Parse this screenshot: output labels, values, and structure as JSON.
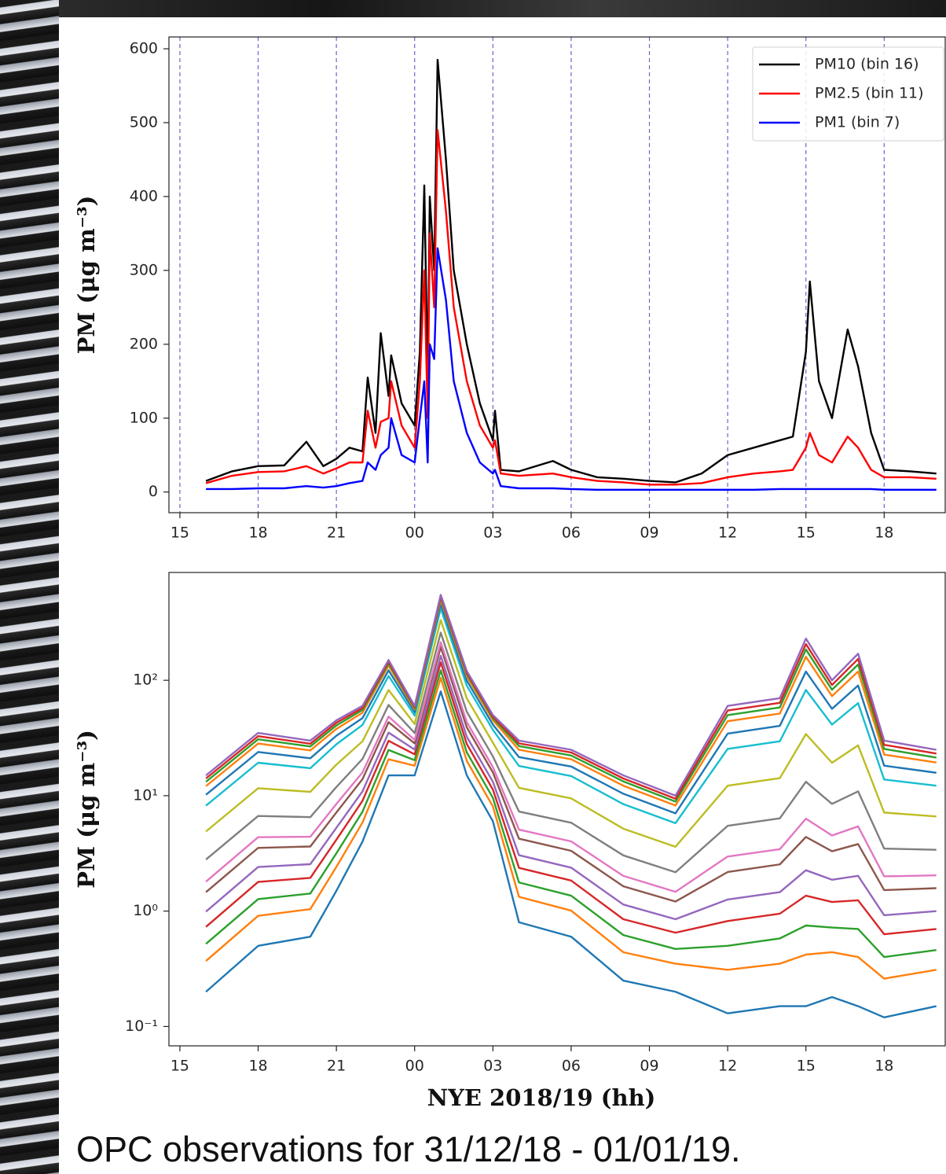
{
  "caption": "OPC observations for 31/12/18 - 01/01/19.",
  "chart_data": [
    {
      "type": "line",
      "ylabel": "PM (μg m⁻³)",
      "x": [
        16,
        17,
        18,
        19,
        19.85,
        20.5,
        21,
        21.5,
        22,
        22.2,
        22.5,
        22.7,
        23,
        23.1,
        23.5,
        24,
        24.2,
        24.37,
        24.5,
        24.58,
        24.75,
        24.88,
        25.2,
        25.5,
        26,
        26.5,
        27,
        27.08,
        27.3,
        28,
        29.3,
        30,
        31,
        32,
        33,
        34,
        35,
        36,
        37,
        38,
        38.5,
        39,
        39.15,
        39.5,
        40,
        40.6,
        41,
        41.5,
        42,
        43,
        44
      ],
      "series": [
        {
          "name": "PM10 (bin 16)",
          "color": "#000000",
          "values": [
            15,
            28,
            35,
            36,
            68,
            35,
            45,
            60,
            55,
            155,
            80,
            215,
            130,
            185,
            120,
            90,
            190,
            415,
            150,
            400,
            300,
            585,
            450,
            300,
            200,
            120,
            70,
            110,
            30,
            28,
            42,
            30,
            20,
            18,
            15,
            13,
            25,
            50,
            60,
            70,
            75,
            190,
            285,
            150,
            100,
            220,
            170,
            80,
            30,
            28,
            25
          ]
        },
        {
          "name": "PM2.5 (bin 11)",
          "color": "#ff0000",
          "values": [
            12,
            22,
            27,
            28,
            35,
            25,
            32,
            40,
            40,
            110,
            60,
            95,
            100,
            150,
            90,
            60,
            150,
            300,
            100,
            350,
            250,
            490,
            380,
            250,
            150,
            90,
            60,
            70,
            25,
            22,
            25,
            20,
            15,
            13,
            10,
            10,
            12,
            20,
            25,
            28,
            30,
            60,
            80,
            50,
            40,
            75,
            60,
            30,
            20,
            20,
            18
          ]
        },
        {
          "name": "PM1 (bin 7)",
          "color": "#0000ff",
          "values": [
            4,
            4,
            5,
            5,
            8,
            6,
            8,
            12,
            15,
            40,
            30,
            50,
            60,
            100,
            50,
            40,
            100,
            150,
            40,
            200,
            180,
            330,
            260,
            150,
            80,
            40,
            25,
            30,
            8,
            5,
            5,
            4,
            3,
            3,
            3,
            3,
            3,
            3,
            3,
            4,
            4,
            4,
            4,
            4,
            4,
            4,
            4,
            4,
            3,
            3,
            3
          ]
        }
      ],
      "xlim": [
        14.58,
        44.34
      ],
      "xticks": [
        15,
        18,
        21,
        {
          "value": 24,
          "label": "00"
        },
        {
          "value": 27,
          "label": "03"
        },
        {
          "value": 30,
          "label": "06"
        },
        {
          "value": 33,
          "label": "09"
        },
        {
          "value": 36,
          "label": "12"
        },
        {
          "value": 39,
          "label": "15"
        },
        {
          "value": 42,
          "label": "18"
        }
      ],
      "ylim": [
        -28,
        616
      ],
      "yticks": [
        0,
        100,
        200,
        300,
        400,
        500,
        600
      ],
      "yscale": "linear",
      "grid": "x",
      "grid_color": "#6f63c9",
      "legend": "upper right"
    },
    {
      "type": "line",
      "xlabel": "NYE 2018/19 (hh)",
      "ylabel": "PM (μg m⁻³)",
      "x": [
        16,
        18,
        20,
        21,
        22,
        23,
        24,
        25,
        26,
        27,
        28,
        30,
        32,
        34,
        36,
        38,
        39,
        40,
        41,
        42,
        44
      ],
      "series": [
        {
          "color": "#1f77b4",
          "values": [
            0.2,
            0.5,
            0.6,
            1.5,
            4,
            15,
            15,
            80,
            15,
            6,
            0.8,
            0.6,
            0.25,
            0.2,
            0.13,
            0.15,
            0.15,
            0.18,
            0.15,
            0.12,
            0.15
          ]
        },
        {
          "color": "#ff7f0e",
          "values": [
            0.37,
            0.91,
            1.04,
            2.42,
            5.85,
            20.7,
            18.2,
            105,
            20.0,
            8.07,
            1.33,
            1.01,
            0.44,
            0.35,
            0.31,
            0.35,
            0.42,
            0.44,
            0.4,
            0.26,
            0.31
          ]
        },
        {
          "color": "#2ca02c",
          "values": [
            0.52,
            1.27,
            1.42,
            3.17,
            7.26,
            24.9,
            20.3,
            122,
            23.7,
            9.57,
            1.77,
            1.36,
            0.62,
            0.47,
            0.5,
            0.58,
            0.75,
            0.72,
            0.7,
            0.4,
            0.46
          ]
        },
        {
          "color": "#d62728",
          "values": [
            0.73,
            1.79,
            1.94,
            4.16,
            9.02,
            29.9,
            22.8,
            143,
            28.0,
            11.3,
            2.37,
            1.84,
            0.85,
            0.65,
            0.82,
            0.95,
            1.36,
            1.2,
            1.24,
            0.63,
            0.7
          ]
        },
        {
          "color": "#9467bd",
          "values": [
            0.99,
            2.41,
            2.55,
            5.27,
            10.9,
            35.2,
            25.1,
            163,
            32.4,
            13.2,
            3.05,
            2.38,
            1.14,
            0.85,
            1.26,
            1.46,
            2.26,
            1.87,
            2.02,
            0.92,
            1.0
          ]
        },
        {
          "color": "#8c564b",
          "values": [
            1.46,
            3.53,
            3.63,
            7.16,
            13.9,
            43.3,
            28.4,
            194,
            39.0,
            15.9,
            4.24,
            3.33,
            1.64,
            1.21,
            2.18,
            2.54,
            4.39,
            3.3,
            3.81,
            1.52,
            1.58
          ]
        },
        {
          "color": "#e377c2",
          "values": [
            1.8,
            4.37,
            4.41,
            8.49,
            15.9,
            48.5,
            30.4,
            214,
            43.4,
            17.7,
            5.08,
            4.02,
            2.02,
            1.47,
            2.97,
            3.44,
            6.32,
            4.52,
            5.42,
            2.0,
            2.04
          ]
        },
        {
          "color": "#7f7f7f",
          "values": [
            2.8,
            6.67,
            6.52,
            11.9,
            20.8,
            61.1,
            34.9,
            259,
            53.3,
            21.9,
            7.29,
            5.83,
            3.04,
            2.17,
            5.48,
            6.37,
            13.2,
            8.49,
            10.9,
            3.48,
            3.4
          ]
        },
        {
          "color": "#bcbd22",
          "values": [
            4.9,
            11.6,
            10.8,
            18.6,
            29.6,
            82.4,
            41.8,
            333,
            69.8,
            28.8,
            11.7,
            9.48,
            5.18,
            3.61,
            12.2,
            14.2,
            34.2,
            19.3,
            27.3,
            7.14,
            6.61
          ]
        },
        {
          "color": "#17becf",
          "values": [
            8.2,
            19.3,
            17.3,
            27.9,
            41.0,
            109,
            49.4,
            420,
            89.7,
            37.2,
            18.1,
            14.8,
            8.45,
            5.78,
            25.4,
            29.6,
            82.4,
            41.3,
            63.4,
            13.8,
            12.2
          ]
        },
        {
          "color": "#1f77b4",
          "values": [
            10.2,
            23.9,
            21.1,
            33.1,
            47.0,
            122,
            53.0,
            462,
            99.5,
            41.3,
            21.6,
            17.9,
            10.4,
            7.03,
            34.5,
            40.3,
            119,
            56.6,
            90.2,
            18.2,
            15.8
          ]
        },
        {
          "color": "#ff7f0e",
          "values": [
            12.1,
            28.3,
            24.7,
            37.9,
            52.4,
            134,
            56.0,
            499,
            108,
            45.0,
            25.0,
            20.7,
            12.2,
            8.22,
            44.2,
            51.5,
            160,
            72.9,
            119,
            22.7,
            19.4
          ]
        },
        {
          "color": "#2ca02c",
          "values": [
            13.2,
            30.8,
            26.7,
            40.6,
            55.3,
            140,
            57.5,
            519,
            113,
            46.9,
            26.9,
            22.3,
            13.3,
            8.89,
            49.9,
            58.2,
            185,
            82.8,
            137,
            25.4,
            21.4
          ]
        },
        {
          "color": "#d62728",
          "values": [
            14.1,
            32.8,
            28.2,
            42.8,
            57.5,
            145,
            58.7,
            533,
            116,
            48.4,
            28.4,
            23.7,
            14.1,
            9.42,
            54.7,
            63.8,
            206,
            91.0,
            153,
            27.6,
            23.2
          ]
        },
        {
          "color": "#9467bd",
          "values": [
            15,
            35,
            30,
            45,
            60,
            150,
            60,
            550,
            120,
            50,
            30,
            25,
            15,
            10,
            60,
            70,
            230,
            100,
            170,
            30,
            25
          ]
        }
      ],
      "xlim": [
        14.58,
        44.34
      ],
      "xticks": [
        15,
        18,
        21,
        {
          "value": 24,
          "label": "00"
        },
        {
          "value": 27,
          "label": "03"
        },
        {
          "value": 30,
          "label": "06"
        },
        {
          "value": 33,
          "label": "09"
        },
        {
          "value": 36,
          "label": "12"
        },
        {
          "value": 39,
          "label": "15"
        },
        {
          "value": 42,
          "label": "18"
        }
      ],
      "ylim": [
        0.068,
        860
      ],
      "yticks": [
        {
          "value": 0.1,
          "label": "10⁻¹"
        },
        {
          "value": 1,
          "label": "10⁰"
        },
        {
          "value": 10,
          "label": "10¹"
        },
        {
          "value": 100,
          "label": "10²"
        }
      ],
      "yscale": "log",
      "grid": "none"
    }
  ]
}
